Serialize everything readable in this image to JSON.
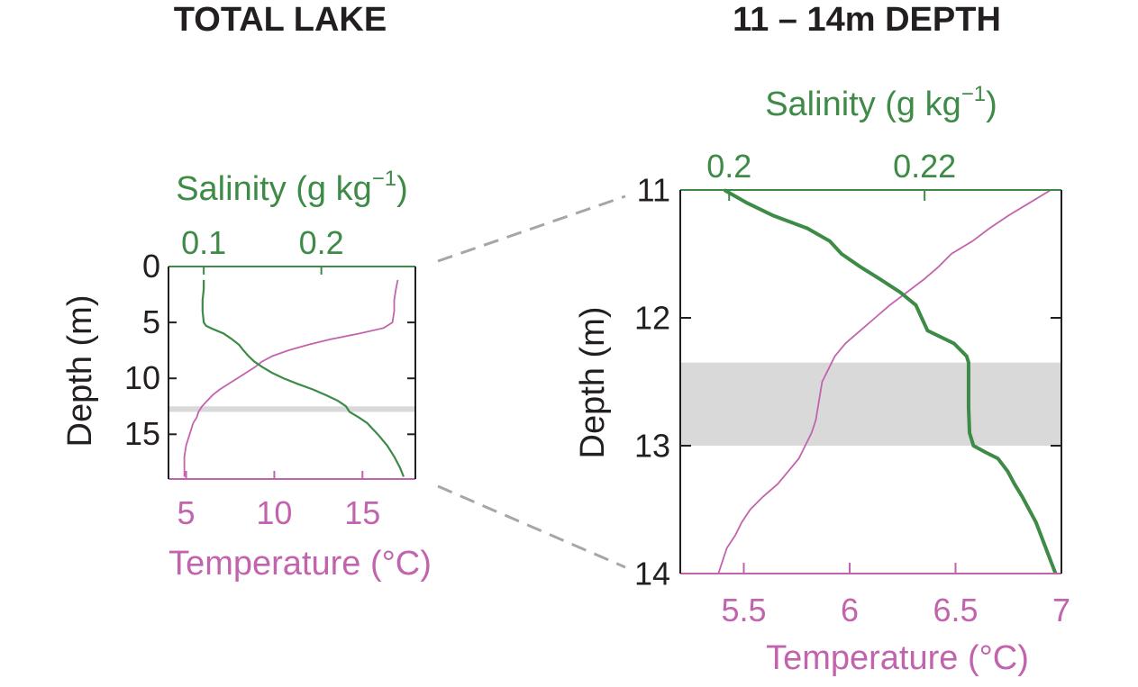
{
  "colors": {
    "salinity": "#3d8b47",
    "temperature": "#c264ad",
    "axis": "#231f20",
    "highlight": "#d9d9d9",
    "zoom_lines": "#a6a6a6"
  },
  "chart_data": [
    {
      "type": "line",
      "panel": "total-lake",
      "title": "TOTAL LAKE",
      "ylabel": "Depth (m)",
      "ylim": [
        0,
        19
      ],
      "y_reversed": true,
      "yticks": [
        0,
        5,
        10,
        15
      ],
      "highlight_band": [
        12.5,
        13.0
      ],
      "top_axis": {
        "label_main": "Salinity (g kg",
        "label_sup": "−1",
        "label_end": ")",
        "lim": [
          0.07,
          0.28
        ],
        "ticks": [
          0.1,
          0.2
        ],
        "tick_labels": [
          "0.1",
          "0.2"
        ]
      },
      "bottom_axis": {
        "label": "Temperature (°C)",
        "lim": [
          4,
          18
        ],
        "ticks": [
          5,
          10,
          15
        ],
        "tick_labels": [
          "5",
          "10",
          "15"
        ]
      },
      "series": [
        {
          "axis": "top",
          "depth": [
            1.2,
            2,
            3,
            4,
            5,
            5.3,
            5.6,
            6,
            6.5,
            7,
            7.4,
            8,
            8.5,
            9,
            9.5,
            10,
            10.5,
            11,
            11.5,
            12,
            12.5,
            13,
            13.5,
            14,
            15,
            16,
            17,
            18,
            18.8
          ],
          "values": [
            0.1,
            0.1,
            0.099,
            0.099,
            0.1,
            0.102,
            0.108,
            0.117,
            0.124,
            0.13,
            0.133,
            0.138,
            0.143,
            0.15,
            0.158,
            0.168,
            0.18,
            0.193,
            0.204,
            0.214,
            0.221,
            0.224,
            0.232,
            0.239,
            0.248,
            0.256,
            0.262,
            0.267,
            0.27
          ]
        },
        {
          "axis": "bottom",
          "depth": [
            1.2,
            2,
            3,
            4,
            5,
            5.5,
            6,
            6.5,
            7,
            7.5,
            8,
            8.5,
            9,
            9.5,
            10,
            10.5,
            11,
            11.5,
            12,
            12.5,
            13,
            13.5,
            14,
            15,
            16,
            17,
            18,
            18.8
          ],
          "values": [
            17.0,
            16.9,
            16.8,
            16.8,
            16.7,
            16.2,
            14.8,
            13.2,
            11.9,
            10.8,
            9.9,
            9.3,
            8.9,
            8.4,
            7.9,
            7.4,
            6.9,
            6.5,
            6.2,
            5.9,
            5.7,
            5.6,
            5.4,
            5.2,
            5.0,
            4.9,
            4.9,
            4.9
          ]
        }
      ]
    },
    {
      "type": "line",
      "panel": "depth-11-14",
      "title": "11 – 14m DEPTH",
      "ylabel": "Depth (m)",
      "ylim": [
        11,
        14
      ],
      "y_reversed": true,
      "yticks": [
        11,
        12,
        13,
        14
      ],
      "highlight_band": [
        12.35,
        13.0
      ],
      "top_axis": {
        "label_main": "Salinity (g kg",
        "label_sup": "−1",
        "label_end": ")",
        "lim": [
          0.195,
          0.234
        ],
        "ticks": [
          0.2,
          0.22
        ],
        "tick_labels": [
          "0.2",
          "0.22"
        ]
      },
      "bottom_axis": {
        "label": "Temperature (°C)",
        "lim": [
          5.2,
          7.0
        ],
        "ticks": [
          5.5,
          6,
          6.5,
          7
        ],
        "tick_labels": [
          "5.5",
          "6",
          "6.5",
          "7"
        ]
      },
      "series": [
        {
          "axis": "top",
          "depth": [
            11.0,
            11.1,
            11.2,
            11.3,
            11.4,
            11.5,
            11.6,
            11.7,
            11.8,
            11.9,
            12.0,
            12.1,
            12.2,
            12.3,
            12.35,
            12.5,
            12.7,
            12.9,
            13.0,
            13.05,
            13.1,
            13.2,
            13.3,
            13.4,
            13.5,
            13.6,
            13.7,
            13.8,
            13.9,
            14.0
          ],
          "values": [
            0.1995,
            0.2018,
            0.2045,
            0.208,
            0.2103,
            0.2115,
            0.2134,
            0.2155,
            0.2175,
            0.2191,
            0.2197,
            0.2203,
            0.223,
            0.2243,
            0.2245,
            0.2245,
            0.2245,
            0.2246,
            0.225,
            0.2262,
            0.2275,
            0.2285,
            0.2292,
            0.23,
            0.2307,
            0.2314,
            0.2319,
            0.2324,
            0.2329,
            0.2334
          ]
        },
        {
          "axis": "bottom",
          "depth": [
            11.0,
            11.1,
            11.2,
            11.3,
            11.4,
            11.5,
            11.6,
            11.7,
            11.8,
            11.9,
            12.0,
            12.1,
            12.2,
            12.3,
            12.4,
            12.5,
            12.6,
            12.7,
            12.8,
            12.9,
            13.0,
            13.1,
            13.2,
            13.3,
            13.4,
            13.5,
            13.6,
            13.7,
            13.8,
            13.9,
            14.0
          ],
          "values": [
            6.95,
            6.85,
            6.75,
            6.66,
            6.58,
            6.48,
            6.42,
            6.35,
            6.27,
            6.19,
            6.12,
            6.05,
            5.98,
            5.93,
            5.9,
            5.87,
            5.86,
            5.85,
            5.84,
            5.82,
            5.79,
            5.76,
            5.71,
            5.66,
            5.59,
            5.53,
            5.49,
            5.46,
            5.42,
            5.4,
            5.38
          ]
        }
      ]
    }
  ]
}
